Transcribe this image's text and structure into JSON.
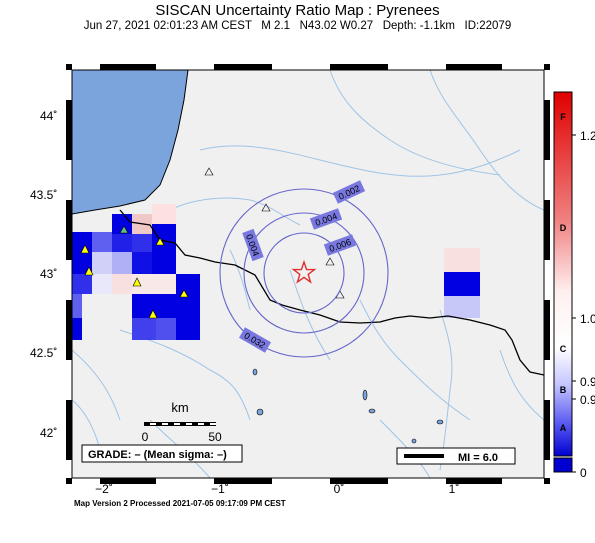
{
  "title": "SISCAN Uncertainty Ratio Map : Pyrenees",
  "subtitle": "Jun 27, 2021 02:01:23 AM CEST   M 2.1   N43.02 W0.27   Depth: -1.1km   ID:22079",
  "footer": "Map Version 2 Processed 2021-07-05 09:17:09 PM CEST",
  "map": {
    "lon_range": [
      -2.3,
      1.85
    ],
    "lat_range": [
      41.77,
      44.35
    ],
    "lat_ticks": [
      {
        "value": 44.0,
        "label": "44˚"
      },
      {
        "value": 43.5,
        "label": "43.5˚"
      },
      {
        "value": 43.0,
        "label": "43˚"
      },
      {
        "value": 42.5,
        "label": "42.5˚"
      },
      {
        "value": 42.0,
        "label": "42˚"
      }
    ],
    "lon_ticks": [
      {
        "value": -2.0,
        "label": "−2˚"
      },
      {
        "value": -1.0,
        "label": "−1˚"
      },
      {
        "value": 0.0,
        "label": "0˚"
      },
      {
        "value": 1.0,
        "label": "1˚"
      }
    ],
    "epicenter": {
      "lat": 43.02,
      "lon": -0.27
    },
    "contour_labels": [
      "0.002",
      "0.004",
      "0.006",
      "0.004",
      "0.032"
    ],
    "scale_bar": {
      "title": "km",
      "labels": [
        "0",
        "50"
      ]
    },
    "grade_box": "GRADE: – (Mean sigma: –)",
    "mi_box": "MI = 6.0"
  },
  "colorbar": {
    "letters": [
      "F",
      "D",
      "C",
      "B",
      "A"
    ],
    "values": [
      "1.2",
      "1.0",
      "0.9",
      "0.9",
      "0"
    ]
  },
  "colors": {
    "sea": "#7ba4dc",
    "land": "#f0f0f0",
    "river": "#9ec4e6",
    "contour": "#6666cc",
    "star": "#e03030",
    "station": "#ffff00"
  }
}
